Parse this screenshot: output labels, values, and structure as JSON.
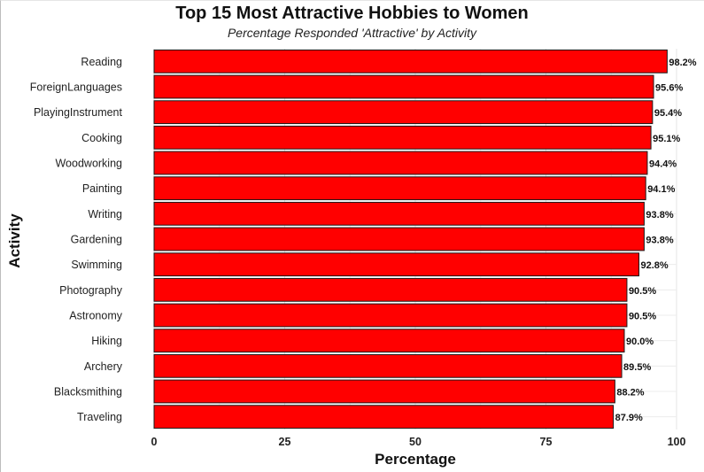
{
  "chart_data": {
    "type": "bar",
    "orientation": "horizontal",
    "title": "Top 15 Most Attractive Hobbies to Women",
    "subtitle": "Percentage Responded 'Attractive' by Activity",
    "xlabel": "Percentage",
    "ylabel": "Activity",
    "xlim": [
      0,
      100
    ],
    "xticks": [
      0,
      25,
      50,
      75,
      100
    ],
    "grid": true,
    "bar_color": "#ff0000",
    "bar_edge_color": "#1a1a1a",
    "categories": [
      "Reading",
      "ForeignLanguages",
      "PlayingInstrument",
      "Cooking",
      "Woodworking",
      "Painting",
      "Writing",
      "Gardening",
      "Swimming",
      "Photography",
      "Astronomy",
      "Hiking",
      "Archery",
      "Blacksmithing",
      "Traveling"
    ],
    "values": [
      98.2,
      95.6,
      95.4,
      95.1,
      94.4,
      94.1,
      93.8,
      93.8,
      92.8,
      90.5,
      90.5,
      90.0,
      89.5,
      88.2,
      87.9
    ],
    "value_labels": [
      "98.2%",
      "95.6%",
      "95.4%",
      "95.1%",
      "94.4%",
      "94.1%",
      "93.8%",
      "93.8%",
      "92.8%",
      "90.5%",
      "90.5%",
      "90.0%",
      "89.5%",
      "88.2%",
      "87.9%"
    ]
  }
}
